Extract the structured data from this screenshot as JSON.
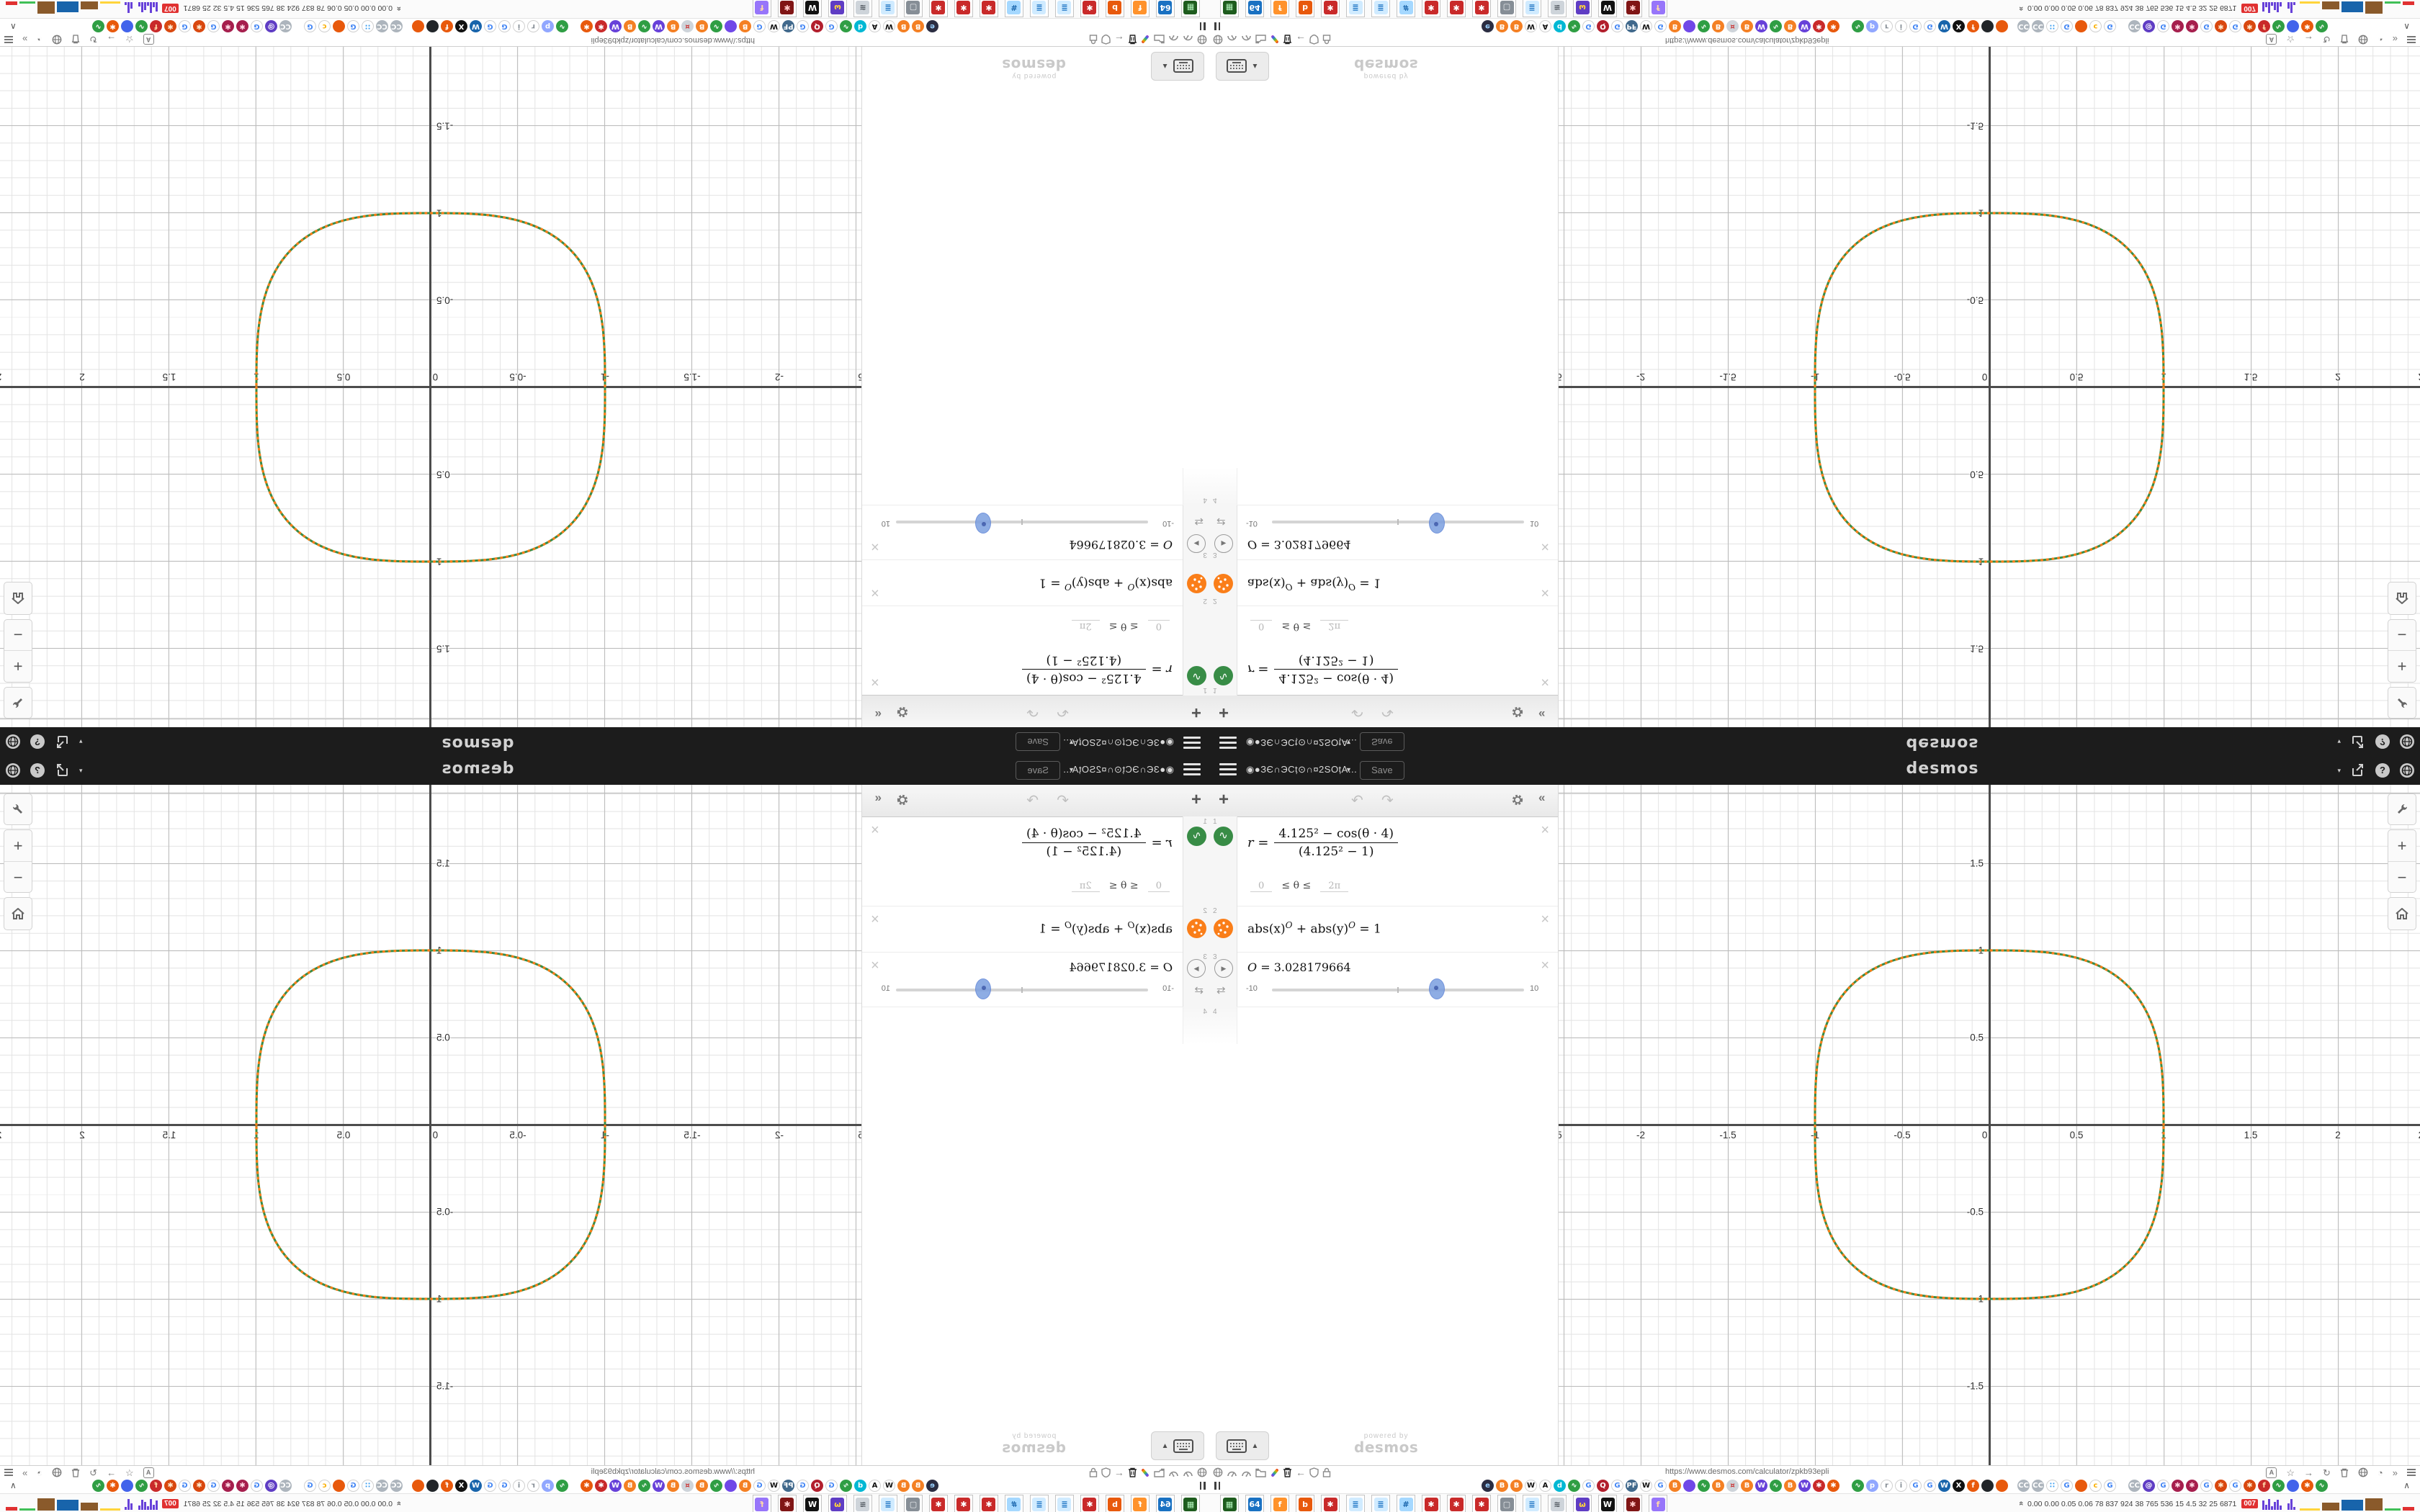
{
  "header": {
    "title": "◉●ЗЄ∩ЭСṭ⊙∩¤2SОṭA...",
    "title_dropdown": "▼",
    "save_label": "Save",
    "wordmark": "desmos",
    "right_caret": "▾",
    "help_glyph": "?"
  },
  "panel": {
    "toolbar": {
      "add": "+",
      "undo": "↶",
      "redo": "↷",
      "collapse": "«"
    },
    "row1": {
      "index": "1",
      "lhs": "r =",
      "numerator": "4.125² − cos(θ · 4)",
      "denominator": "(4.125² − 1)",
      "domain_lo": "0",
      "domain_mid": "≤ θ ≤",
      "domain_hi": "2π",
      "close": "×"
    },
    "row2": {
      "index": "2",
      "p1": "abs(x)",
      "e1": "O",
      "p2": " + abs(y)",
      "e2": "O",
      "p3": " = 1",
      "close": "×"
    },
    "row3": {
      "index": "3",
      "var": "O",
      "value": " = 3.028179664",
      "min": "-10",
      "max": "10",
      "play": "▶",
      "loop": "⇄",
      "close": "×"
    },
    "row4": {
      "index": "4"
    },
    "keypad_arrow": "▲",
    "watermark_line1": "powered by",
    "watermark_line2": "desmos"
  },
  "chart_data": {
    "type": "line",
    "title": "",
    "equations": [
      {
        "latex": "r = (4.125² − cos(θ·4)) / (4.125² − 1)",
        "domain": "0 ≤ θ ≤ 2π",
        "color": "#388c46",
        "style": "solid"
      },
      {
        "latex": "abs(x)^O + abs(y)^O = 1",
        "color": "#fa7e19",
        "style": "dotted"
      }
    ],
    "parameters": {
      "O": 3.028179664,
      "slider_min": -10,
      "slider_max": 10,
      "slider_fraction": 0.6514
    },
    "shape_note": "both curves overlap as a squircle crossing the axes at ±1",
    "x_ticks": [
      {
        "v": -2.5,
        "label": "-2.5"
      },
      {
        "v": -2,
        "label": "-2"
      },
      {
        "v": -1.5,
        "label": "-1.5"
      },
      {
        "v": -1,
        "label": "-1"
      },
      {
        "v": -0.5,
        "label": "-0.5"
      },
      {
        "v": 0,
        "label": "0"
      },
      {
        "v": 0.5,
        "label": "0.5"
      },
      {
        "v": 1,
        "label": "1"
      },
      {
        "v": 1.5,
        "label": "1.5"
      },
      {
        "v": 2,
        "label": "2"
      },
      {
        "v": 2.5,
        "label": "2.5"
      }
    ],
    "y_ticks": [
      {
        "v": 1.5,
        "label": "1.5"
      },
      {
        "v": 1,
        "label": "1"
      },
      {
        "v": 0.5,
        "label": "0.5"
      },
      {
        "v": -0.5,
        "label": "-0.5"
      },
      {
        "v": -1,
        "label": "-1"
      },
      {
        "v": -1.5,
        "label": "-1.5"
      }
    ],
    "xlim": [
      -2.47,
      2.47
    ],
    "ylim": [
      -1.95,
      1.95
    ],
    "grid": true,
    "minor_step": 0.1,
    "major_step": 0.5,
    "axis_color": "#4c4c4c"
  },
  "browser": {
    "url": "https://www.desmos.com/calculator/zpkb93epli",
    "fav_caret": "∧",
    "nav_right": {
      "star": "☆",
      "fwd": "→",
      "reload": "↻",
      "quad": "◔",
      "more": "»",
      "translate": "A"
    }
  },
  "favicons": [
    {
      "t": "e",
      "bg": "#2b2d42",
      "fg": "#9ad1ff"
    },
    {
      "t": "B",
      "bg": "#f48024",
      "fg": "#ffffff"
    },
    {
      "t": "B",
      "bg": "#f48024",
      "fg": "#ffffff"
    },
    {
      "t": "W",
      "bg": "#ffffff",
      "fg": "#111111",
      "br": 1
    },
    {
      "t": "A",
      "bg": "#ffffff",
      "fg": "#111111",
      "br": 1
    },
    {
      "t": "d",
      "bg": "#00b8d4",
      "fg": "#ffffff"
    },
    {
      "t": "∿",
      "bg": "#2f9e44",
      "fg": "#ffffff"
    },
    {
      "t": "G",
      "bg": "#ffffff",
      "fg": "#4285f4",
      "br": 1
    },
    {
      "t": "Q",
      "bg": "#b21f2d",
      "fg": "#ffffff"
    },
    {
      "t": "G",
      "bg": "#ffffff",
      "fg": "#4285f4",
      "br": 1
    },
    {
      "t": "PF",
      "bg": "#41698c",
      "fg": "#ffffff"
    },
    {
      "t": "W",
      "bg": "#ffffff",
      "fg": "#111111",
      "br": 1
    },
    {
      "t": "G",
      "bg": "#ffffff",
      "fg": "#4285f4",
      "br": 1
    },
    {
      "t": "B",
      "bg": "#f48024",
      "fg": "#ffffff"
    },
    {
      "t": "",
      "bg": "#7048e8",
      "fg": "#ffffff"
    },
    {
      "t": "∿",
      "bg": "#2f9e44",
      "fg": "#ffffff"
    },
    {
      "t": "B",
      "bg": "#f48024",
      "fg": "#ffffff"
    },
    {
      "t": "¤",
      "bg": "#ced4da",
      "fg": "#c92a2a"
    },
    {
      "t": "B",
      "bg": "#f48024",
      "fg": "#ffffff"
    },
    {
      "t": "W",
      "bg": "#6741d9",
      "fg": "#ffffff"
    },
    {
      "t": "∿",
      "bg": "#2f9e44",
      "fg": "#ffffff"
    },
    {
      "t": "B",
      "bg": "#f48024",
      "fg": "#ffffff"
    },
    {
      "t": "W",
      "bg": "#6741d9",
      "fg": "#ffffff"
    },
    {
      "t": "✱",
      "bg": "#c92a2a",
      "fg": "#ffffff"
    },
    {
      "t": "✱",
      "bg": "#e8590c",
      "fg": "#ffffff"
    },
    {
      "t": "∿",
      "bg": "#2f9e44",
      "fg": "#ffffff",
      "gap": 14
    },
    {
      "t": "p",
      "bg": "#91a7ff",
      "fg": "#ffffff"
    },
    {
      "t": "r",
      "bg": "#ffffff",
      "fg": "#868e96",
      "br": 1
    },
    {
      "t": "i",
      "bg": "#ffffff",
      "fg": "#868e96",
      "br": 1
    },
    {
      "t": "G",
      "bg": "#ffffff",
      "fg": "#4285f4",
      "br": 1
    },
    {
      "t": "G",
      "bg": "#ffffff",
      "fg": "#4285f4",
      "br": 1
    },
    {
      "t": "W",
      "bg": "#1864ab",
      "fg": "#ffffff"
    },
    {
      "t": "X",
      "bg": "#111111",
      "fg": "#ffffff"
    },
    {
      "t": "f",
      "bg": "#e8590c",
      "fg": "#ffffff"
    },
    {
      "t": "",
      "bg": "#212529",
      "fg": "#ffffff"
    },
    {
      "t": "",
      "bg": "#e8590c",
      "fg": "#ffffff"
    },
    {
      "t": "CC",
      "bg": "#adb5bd",
      "fg": "#ffffff",
      "gap": 10
    },
    {
      "t": "CC",
      "bg": "#adb5bd",
      "fg": "#ffffff"
    },
    {
      "t": "∷",
      "bg": "#ffffff",
      "fg": "#339af0",
      "br": 1
    },
    {
      "t": "G",
      "bg": "#ffffff",
      "fg": "#4285f4",
      "br": 1
    },
    {
      "t": "",
      "bg": "#e8590c",
      "fg": "#ffffff"
    },
    {
      "t": "c",
      "bg": "#ffffff",
      "fg": "#fab005",
      "br": 1
    },
    {
      "t": "G",
      "bg": "#ffffff",
      "fg": "#4285f4",
      "br": 1
    },
    {
      "t": "CC",
      "bg": "#adb5bd",
      "fg": "#ffffff",
      "gap": 14
    },
    {
      "t": "@",
      "bg": "#5f3dc4",
      "fg": "#ffffff"
    },
    {
      "t": "G",
      "bg": "#ffffff",
      "fg": "#4285f4",
      "br": 1
    },
    {
      "t": "✱",
      "bg": "#a61e4d",
      "fg": "#ffd8e4"
    },
    {
      "t": "✱",
      "bg": "#a61e4d",
      "fg": "#ffd8e4"
    },
    {
      "t": "G",
      "bg": "#ffffff",
      "fg": "#4285f4",
      "br": 1
    },
    {
      "t": "✱",
      "bg": "#d9480f",
      "fg": "#ffe8cc"
    },
    {
      "t": "G",
      "bg": "#ffffff",
      "fg": "#4285f4",
      "br": 1
    },
    {
      "t": "✱",
      "bg": "#d9480f",
      "fg": "#ffe8cc"
    },
    {
      "t": "f",
      "bg": "#c92a2a",
      "fg": "#ffd8a8"
    },
    {
      "t": "∿",
      "bg": "#2f9e44",
      "fg": "#ffffff"
    },
    {
      "t": "",
      "bg": "#4263eb",
      "fg": "#ffffff"
    },
    {
      "t": "✱",
      "bg": "#e8590c",
      "fg": "#ffffff"
    },
    {
      "t": "∿",
      "bg": "#2f9e44",
      "fg": "#ffffff"
    }
  ],
  "taskbar": {
    "apps": [
      {
        "t": "▦",
        "bg": "#1e5c1e",
        "fg": "#b2f2bb"
      },
      {
        "t": "64",
        "bg": "#1971c2",
        "fg": "#ffffff"
      },
      {
        "t": "f",
        "bg": "#ff922b",
        "fg": "#ffffff"
      },
      {
        "t": "b",
        "bg": "#e8590c",
        "fg": "#ffffff"
      },
      {
        "t": "✱",
        "bg": "#c92a2a",
        "fg": "#ffffff"
      },
      {
        "t": "≣",
        "bg": "#d0ebff",
        "fg": "#1971c2"
      },
      {
        "t": "≣",
        "bg": "#d0ebff",
        "fg": "#1971c2"
      },
      {
        "t": "#",
        "bg": "#a5d8ff",
        "fg": "#1864ab"
      },
      {
        "t": "✱",
        "bg": "#c92a2a",
        "fg": "#ffffff"
      },
      {
        "t": "✱",
        "bg": "#c92a2a",
        "fg": "#ffffff"
      },
      {
        "t": "✱",
        "bg": "#c92a2a",
        "fg": "#ffffff"
      },
      {
        "t": "▢",
        "bg": "#868e96",
        "fg": "#e9ecef"
      },
      {
        "t": "≣",
        "bg": "#d0ebff",
        "fg": "#1971c2"
      },
      {
        "t": "≋",
        "bg": "#ced4da",
        "fg": "#495057"
      },
      {
        "t": "ω",
        "bg": "#5f3dc4",
        "fg": "#ffd43b"
      },
      {
        "t": "W",
        "bg": "#111111",
        "fg": "#ffffff"
      },
      {
        "t": "✱",
        "bg": "#801515",
        "fg": "#ffc9c9"
      },
      {
        "t": "f",
        "bg": "#9775fa",
        "fg": "#ffd8a8"
      }
    ],
    "stats": [
      "0.00",
      "0.00",
      "0.05",
      "0.06",
      "78",
      "837",
      "924",
      "38",
      "765",
      "536",
      "15",
      "4.5",
      "32",
      "25",
      "6871"
    ],
    "badge": "007",
    "spark1": [
      13,
      7,
      15,
      5,
      11,
      14,
      6
    ],
    "spark2": [
      9,
      15,
      4
    ],
    "blocks": [
      {
        "w": 28,
        "h": 3,
        "bg": "#ffd43b"
      },
      {
        "w": 24,
        "h": 11,
        "bg": "#8a5a2b"
      },
      {
        "w": 30,
        "h": 15,
        "bg": "#1864ab"
      },
      {
        "w": 24,
        "h": 17,
        "bg": "#8a5a2b"
      },
      {
        "w": 22,
        "h": 3,
        "bg": "#40c057"
      },
      {
        "w": 16,
        "h": 5,
        "bg": "#e03131"
      }
    ]
  }
}
